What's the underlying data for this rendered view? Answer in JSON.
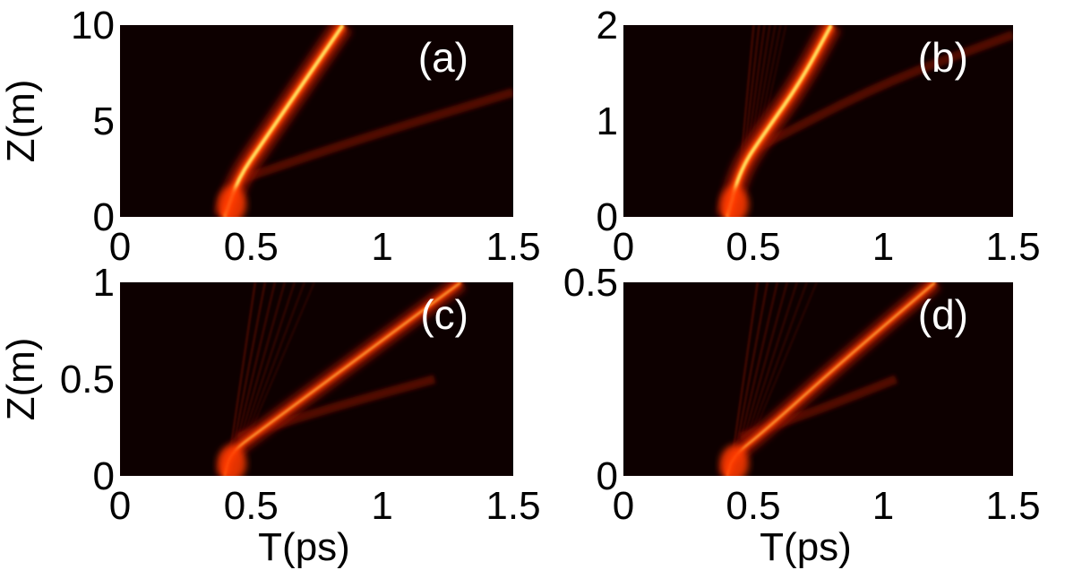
{
  "colors": {
    "background": "#0d0000",
    "beam": "#ff4400",
    "core": "#ffee66",
    "axis_text": "#000000",
    "label_text": "#ffffff"
  },
  "chart_data": [
    {
      "type": "heatmap",
      "panel": "(a)",
      "xlabel": "",
      "ylabel": "Z(m)",
      "xlim": [
        0,
        1.5
      ],
      "ylim": [
        0,
        10
      ],
      "xticks": [
        "0",
        "0.5",
        "1",
        "1.5"
      ],
      "yticks": [
        "0",
        "5",
        "10"
      ],
      "main_beam": [
        [
          0.4,
          0
        ],
        [
          0.45,
          2
        ],
        [
          0.55,
          4
        ],
        [
          0.7,
          7
        ],
        [
          0.85,
          10
        ]
      ],
      "radiation": [
        [
          0.47,
          2
        ],
        [
          0.9,
          4
        ],
        [
          1.5,
          6.5
        ]
      ]
    },
    {
      "type": "heatmap",
      "panel": "(b)",
      "xlabel": "",
      "ylabel": "",
      "xlim": [
        0,
        1.5
      ],
      "ylim": [
        0,
        2
      ],
      "xticks": [
        "0",
        "0.5",
        "1",
        "1.5"
      ],
      "yticks": [
        "0",
        "1",
        "2"
      ],
      "main_beam": [
        [
          0.4,
          0
        ],
        [
          0.45,
          0.5
        ],
        [
          0.55,
          0.9
        ],
        [
          0.68,
          1.4
        ],
        [
          0.8,
          2
        ]
      ],
      "radiation": [
        [
          0.5,
          0.7
        ],
        [
          1.0,
          1.4
        ],
        [
          1.5,
          1.9
        ]
      ]
    },
    {
      "type": "heatmap",
      "panel": "(c)",
      "xlabel": "T(ps)",
      "ylabel": "Z(m)",
      "xlim": [
        0,
        1.5
      ],
      "ylim": [
        0,
        1
      ],
      "xticks": [
        "0",
        "0.5",
        "1",
        "1.5"
      ],
      "yticks": [
        "0",
        "0.5",
        "1"
      ],
      "main_beam": [
        [
          0.4,
          0
        ],
        [
          0.42,
          0.12
        ],
        [
          0.55,
          0.25
        ],
        [
          0.9,
          0.6
        ],
        [
          1.3,
          1.0
        ]
      ],
      "radiation": [
        [
          0.45,
          0.2
        ],
        [
          0.8,
          0.35
        ],
        [
          1.2,
          0.5
        ]
      ]
    },
    {
      "type": "heatmap",
      "panel": "(d)",
      "xlabel": "T(ps)",
      "ylabel": "",
      "xlim": [
        0,
        1.5
      ],
      "ylim": [
        0,
        0.5
      ],
      "xticks": [
        "0",
        "0.5",
        "1",
        "1.5"
      ],
      "yticks": [
        "0",
        "0.5"
      ],
      "main_beam": [
        [
          0.4,
          0
        ],
        [
          0.42,
          0.05
        ],
        [
          0.55,
          0.12
        ],
        [
          0.85,
          0.3
        ],
        [
          1.2,
          0.5
        ]
      ],
      "radiation": [
        [
          0.45,
          0.1
        ],
        [
          0.75,
          0.17
        ],
        [
          1.05,
          0.25
        ]
      ]
    }
  ]
}
